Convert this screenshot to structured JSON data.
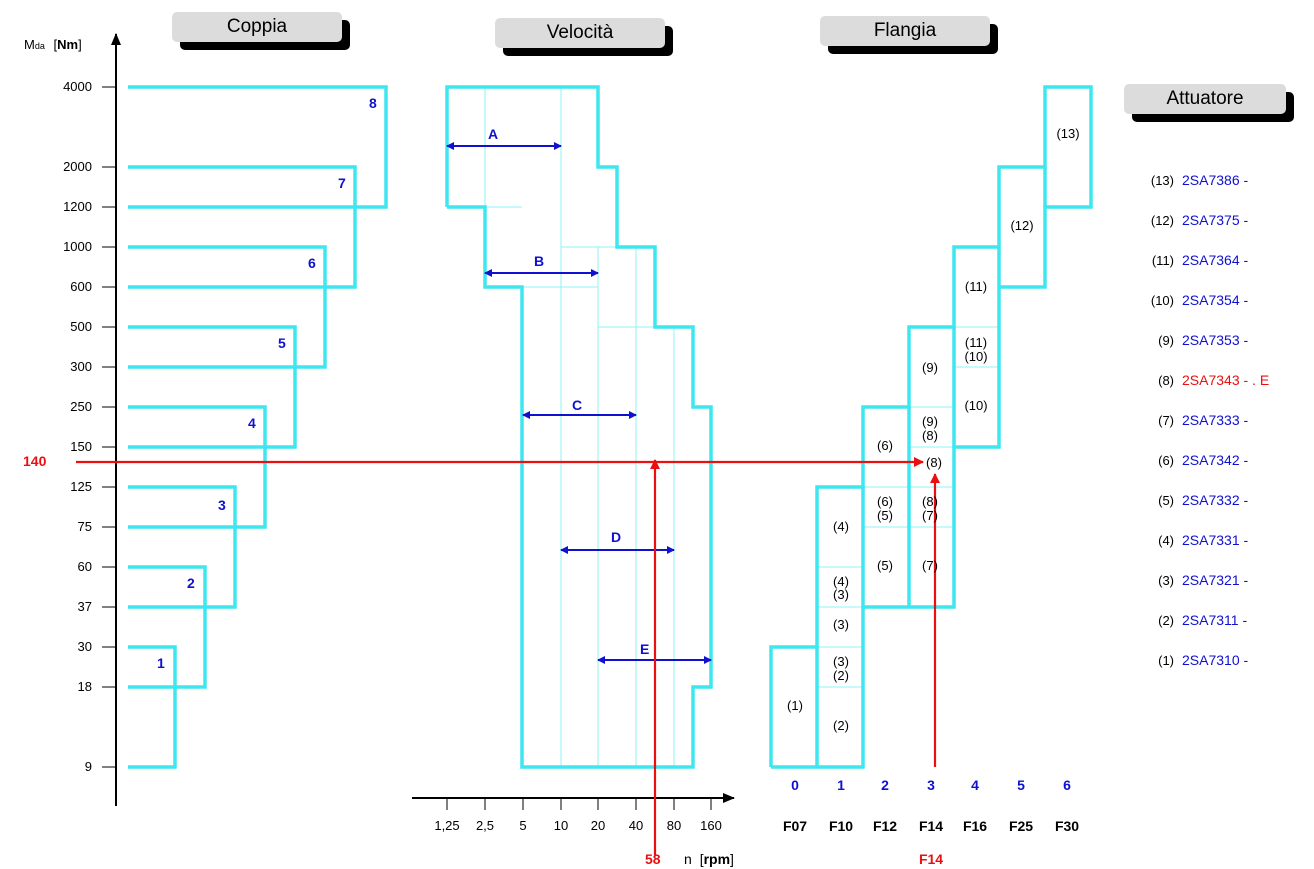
{
  "headers": {
    "coppia": "Coppia",
    "velocita": "Velocità",
    "flangia": "Flangia",
    "attuatore": "Attuatore"
  },
  "y_axis": {
    "label_main": "M",
    "label_sub": "da",
    "unit_open": "[",
    "unit": "Nm",
    "unit_close": "]",
    "ticks": [
      "4000",
      "2000",
      "1200",
      "1000",
      "600",
      "500",
      "300",
      "250",
      "150",
      "125",
      "75",
      "60",
      "37",
      "30",
      "18",
      "9"
    ]
  },
  "x_axis": {
    "ticks": [
      "1,25",
      "2,5",
      "5",
      "10",
      "20",
      "40",
      "80",
      "160"
    ],
    "label": "n",
    "unit_open": "[",
    "unit": "rpm",
    "unit_close": "]"
  },
  "coppia_steps": [
    "1",
    "2",
    "3",
    "4",
    "5",
    "6",
    "7",
    "8"
  ],
  "speed_ranges": [
    "A",
    "B",
    "C",
    "D",
    "E"
  ],
  "flange_numbers": [
    "0",
    "1",
    "2",
    "3",
    "4",
    "5",
    "6"
  ],
  "flange_names": [
    "F07",
    "F10",
    "F12",
    "F14",
    "F16",
    "F25",
    "F30"
  ],
  "flange_cells": [
    {
      "col": 0,
      "text": "(1)"
    },
    {
      "col": 1,
      "text": "(2)"
    },
    {
      "col": 1,
      "text": "(2)"
    },
    {
      "col": 1,
      "text": "(3)"
    },
    {
      "col": 1,
      "text": "(3)"
    },
    {
      "col": 1,
      "text": "(3)"
    },
    {
      "col": 1,
      "text": "(4)"
    },
    {
      "col": 1,
      "text": "(4)"
    },
    {
      "col": 2,
      "text": "(5)"
    },
    {
      "col": 2,
      "text": "(5)"
    },
    {
      "col": 2,
      "text": "(6)"
    },
    {
      "col": 2,
      "text": "(6)"
    },
    {
      "col": 3,
      "text": "(7)"
    },
    {
      "col": 3,
      "text": "(7)"
    },
    {
      "col": 3,
      "text": "(8)"
    },
    {
      "col": 3,
      "text": "(8)"
    },
    {
      "col": 3,
      "text": "(8)"
    },
    {
      "col": 3,
      "text": "(9)"
    },
    {
      "col": 3,
      "text": "(9)"
    },
    {
      "col": 4,
      "text": "(10)"
    },
    {
      "col": 4,
      "text": "(10)"
    },
    {
      "col": 4,
      "text": "(11)"
    },
    {
      "col": 4,
      "text": "(11)"
    },
    {
      "col": 5,
      "text": "(12)"
    },
    {
      "col": 6,
      "text": "(13)"
    }
  ],
  "example": {
    "torque": "140",
    "speed": "58",
    "flange": "F14"
  },
  "actuators": [
    {
      "num": "(13)",
      "code": "2SA7386 -",
      "highlight": false
    },
    {
      "num": "(12)",
      "code": "2SA7375 -",
      "highlight": false
    },
    {
      "num": "(11)",
      "code": "2SA7364 -",
      "highlight": false
    },
    {
      "num": "(10)",
      "code": "2SA7354 -",
      "highlight": false
    },
    {
      "num": "(9)",
      "code": "2SA7353 -",
      "highlight": false
    },
    {
      "num": "(8)",
      "code": "2SA7343 - . E",
      "highlight": true
    },
    {
      "num": "(7)",
      "code": "2SA7333 -",
      "highlight": false
    },
    {
      "num": "(6)",
      "code": "2SA7342 -",
      "highlight": false
    },
    {
      "num": "(5)",
      "code": "2SA7332 -",
      "highlight": false
    },
    {
      "num": "(4)",
      "code": "2SA7331 -",
      "highlight": false
    },
    {
      "num": "(3)",
      "code": "2SA7321 -",
      "highlight": false
    },
    {
      "num": "(2)",
      "code": "2SA7311 -",
      "highlight": false
    },
    {
      "num": "(1)",
      "code": "2SA7310 -",
      "highlight": false
    }
  ],
  "colors": {
    "outline": "#3ee6f0",
    "grid": "#8ff0f5",
    "arrows": "#1010d0",
    "highlight": "#e81010"
  }
}
